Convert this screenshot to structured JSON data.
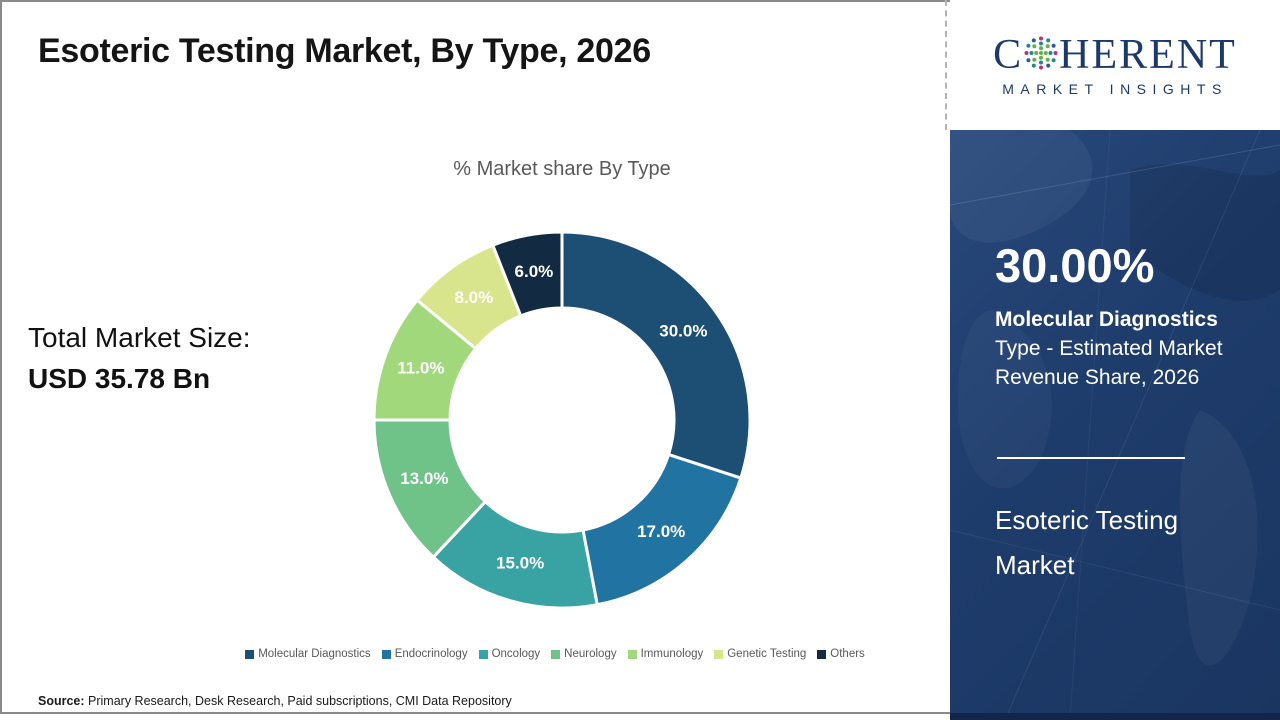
{
  "header": {
    "title": "Esoteric Testing Market, By Type, 2026"
  },
  "logo": {
    "wordmark_left": "C",
    "wordmark_right": "HERENT",
    "tagline": "MARKET INSIGHTS",
    "brand_color": "#1b3a6b"
  },
  "left_panel": {
    "total_label": "Total Market Size:",
    "total_value": "USD 35.78 Bn"
  },
  "chart_data": {
    "type": "pie",
    "donut": true,
    "title": "% Market share By Type",
    "start_angle_deg": 0,
    "direction": "clockwise",
    "legend_position": "bottom",
    "series": [
      {
        "name": "Molecular Diagnostics",
        "value": 30.0,
        "label": "30.0%",
        "color": "#1D4E74"
      },
      {
        "name": "Endocrinology",
        "value": 17.0,
        "label": "17.0%",
        "color": "#2173A2"
      },
      {
        "name": "Oncology",
        "value": 15.0,
        "label": "15.0%",
        "color": "#39A3A3"
      },
      {
        "name": "Neurology",
        "value": 13.0,
        "label": "13.0%",
        "color": "#6FC288"
      },
      {
        "name": "Immunology",
        "value": 11.0,
        "label": "11.0%",
        "color": "#A2D87C"
      },
      {
        "name": "Genetic Testing",
        "value": 8.0,
        "label": "8.0%",
        "color": "#D9E58C"
      },
      {
        "name": "Others",
        "value": 6.0,
        "label": "6.0%",
        "color": "#132B42"
      }
    ]
  },
  "sidebar": {
    "background_color": "#1E3C6B",
    "stat_value": "30.00%",
    "stat_line1": "Molecular Diagnostics",
    "stat_line2": "Type - Estimated Market",
    "stat_line3": "Revenue Share, 2026",
    "market_line1": "Esoteric Testing",
    "market_line2": "Market"
  },
  "footer": {
    "source_label": "Source:",
    "source_text": " Primary Research, Desk Research, Paid subscriptions, CMI Data Repository"
  }
}
